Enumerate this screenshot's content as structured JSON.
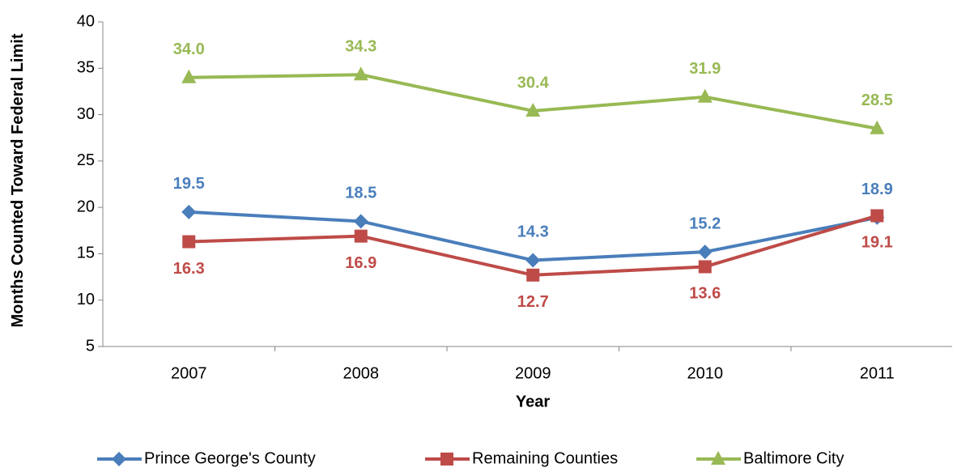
{
  "chart_data": {
    "type": "line",
    "x_label": "Year",
    "y_label": "Months Counted Toward Federal Limit",
    "categories": [
      "2007",
      "2008",
      "2009",
      "2010",
      "2011"
    ],
    "ylim": [
      5,
      40
    ],
    "yticks": [
      5,
      10,
      15,
      20,
      25,
      30,
      35,
      40
    ],
    "legend": "bottom",
    "series": [
      {
        "name": "Prince George's County",
        "color": "#4a7ebb",
        "marker": "diamond",
        "label_position": [
          "above",
          "above",
          "above",
          "above",
          "above"
        ],
        "values": [
          19.5,
          18.5,
          14.3,
          15.2,
          18.9
        ],
        "value_labels": [
          "19.5",
          "18.5",
          "14.3",
          "15.2",
          "18.9"
        ]
      },
      {
        "name": "Remaining Counties",
        "color": "#be4b48",
        "marker": "square",
        "label_position": [
          "below",
          "below",
          "below",
          "below",
          "below"
        ],
        "values": [
          16.3,
          16.9,
          12.7,
          13.6,
          19.1
        ],
        "value_labels": [
          "16.3",
          "16.9",
          "12.7",
          "13.6",
          "19.1"
        ]
      },
      {
        "name": "Baltimore City",
        "color": "#98b954",
        "marker": "triangle",
        "label_position": [
          "above",
          "above",
          "above",
          "above",
          "above"
        ],
        "values": [
          34.0,
          34.3,
          30.4,
          31.9,
          28.5
        ],
        "value_labels": [
          "34.0",
          "34.3",
          "30.4",
          "31.9",
          "28.5"
        ]
      }
    ]
  }
}
